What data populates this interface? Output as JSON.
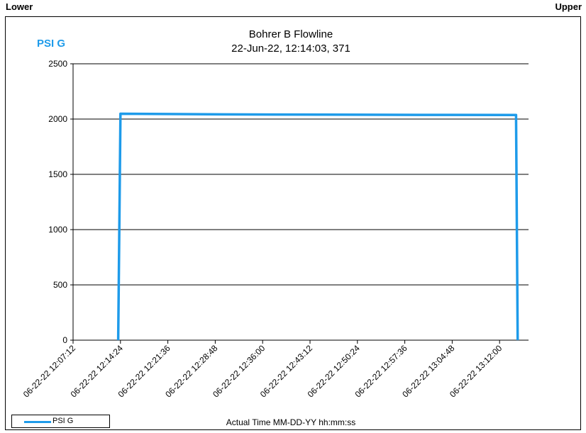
{
  "header": {
    "lower_label": "Lower",
    "upper_label": "Upper"
  },
  "colors": {
    "series": "#1e9bea",
    "grid": "#000000",
    "unit_label": "#1e9bea"
  },
  "chart_data": {
    "type": "line",
    "title": "Bohrer B Flowline",
    "subtitle": "22-Jun-22, 12:14:03, 371",
    "ylabel": "PSI G",
    "xlabel": "Actual Time MM-DD-YY hh:mm:ss",
    "ylim": [
      0,
      2500
    ],
    "yticks": [
      0,
      500,
      1000,
      1500,
      2000,
      2500
    ],
    "xlim": [
      "06-22-22 12:07:12",
      "06-22-22 13:16:24"
    ],
    "xticks": [
      "06-22-22 12:07:12",
      "06-22-22 12:14:24",
      "06-22-22 12:21:36",
      "06-22-22 12:28:48",
      "06-22-22 12:36:00",
      "06-22-22 12:43:12",
      "06-22-22 12:50:24",
      "06-22-22 12:57:36",
      "06-22-22 13:04:48",
      "06-22-22 13:12:00"
    ],
    "grid": true,
    "legend": "bottom-left",
    "series": [
      {
        "name": "PSI G",
        "x": [
          "06-22-22 12:14:03",
          "06-22-22 12:14:24",
          "06-22-22 12:30:00",
          "06-22-22 12:45:00",
          "06-22-22 13:00:00",
          "06-22-22 13:14:30",
          "06-22-22 13:14:45"
        ],
        "y": [
          0,
          2048,
          2042,
          2040,
          2038,
          2037,
          0
        ]
      }
    ]
  }
}
